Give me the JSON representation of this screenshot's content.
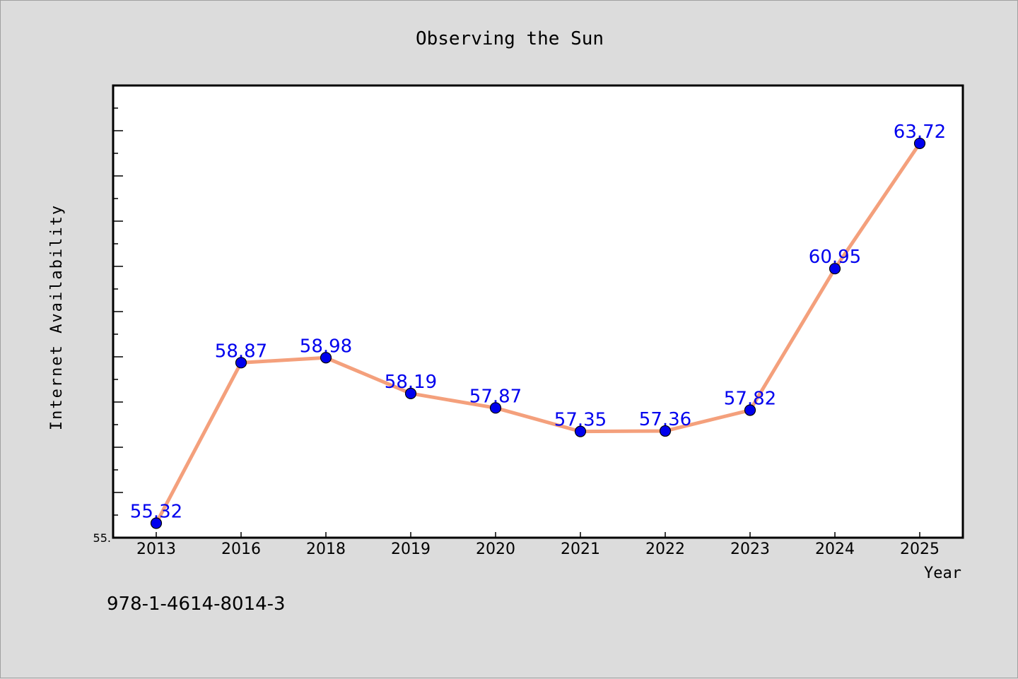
{
  "chart_data": {
    "type": "line",
    "title": "Observing the Sun",
    "xlabel": "Year",
    "ylabel": "Internet Availability",
    "categories": [
      "2013",
      "2016",
      "2018",
      "2019",
      "2020",
      "2021",
      "2022",
      "2023",
      "2024",
      "2025"
    ],
    "series": [
      {
        "values": [
          55.32,
          58.87,
          58.98,
          58.19,
          57.87,
          57.35,
          57.36,
          57.82,
          60.95,
          63.72
        ],
        "labels": [
          "55.32",
          "58.87",
          "58.98",
          "58.19",
          "57.87",
          "57.35",
          "57.36",
          "57.82",
          "60.95",
          "63.72"
        ]
      }
    ],
    "ylim": [
      55.0,
      65.0
    ],
    "y_tick_labels": [
      "55."
    ],
    "grid": false,
    "colors": {
      "line": "#f4a07c",
      "marker": "#0000ee",
      "label": "#0000ee",
      "plot_bg": "#ffffff",
      "page_bg": "#dcdcdc"
    }
  },
  "footer": {
    "isbn": "978-1-4614-8014-3"
  }
}
